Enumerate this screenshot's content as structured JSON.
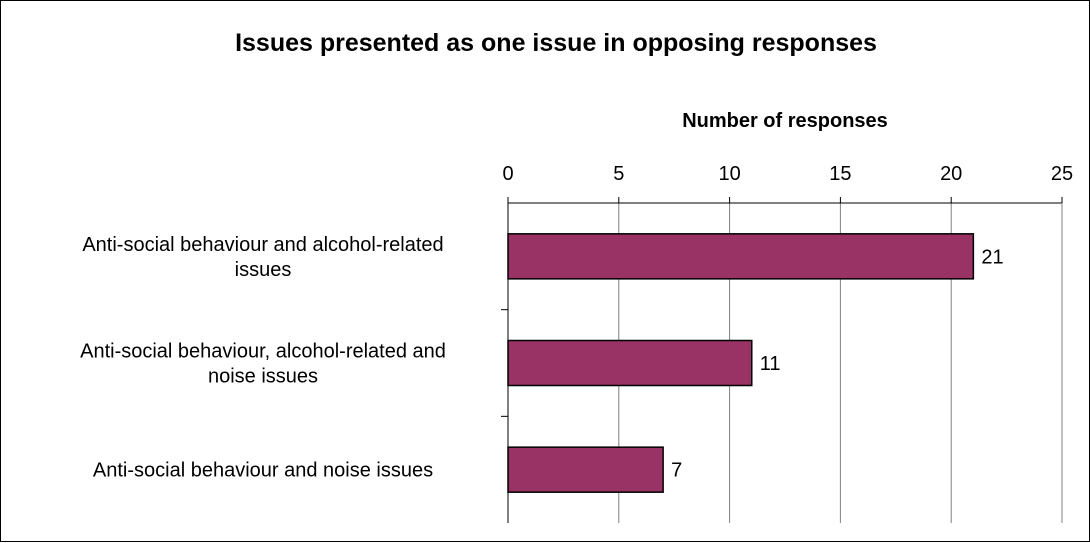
{
  "chart_data": {
    "type": "bar",
    "orientation": "horizontal",
    "title": "Issues presented as one issue in opposing responses",
    "xlabel": "Number of responses",
    "ylabel": "",
    "xlim": [
      0,
      25
    ],
    "xticks": [
      "0",
      "5",
      "10",
      "15",
      "20",
      "25"
    ],
    "x_axis_position": "top",
    "grid": true,
    "categories": [
      [
        "Anti-social behaviour and alcohol-related",
        "issues"
      ],
      [
        "Anti-social behaviour, alcohol-related and",
        "noise issues"
      ],
      [
        "Anti-social behaviour and noise issues"
      ]
    ],
    "values": [
      21,
      11,
      7
    ],
    "data_labels": [
      "21",
      "11",
      "7"
    ],
    "bar_color": "#993366"
  }
}
